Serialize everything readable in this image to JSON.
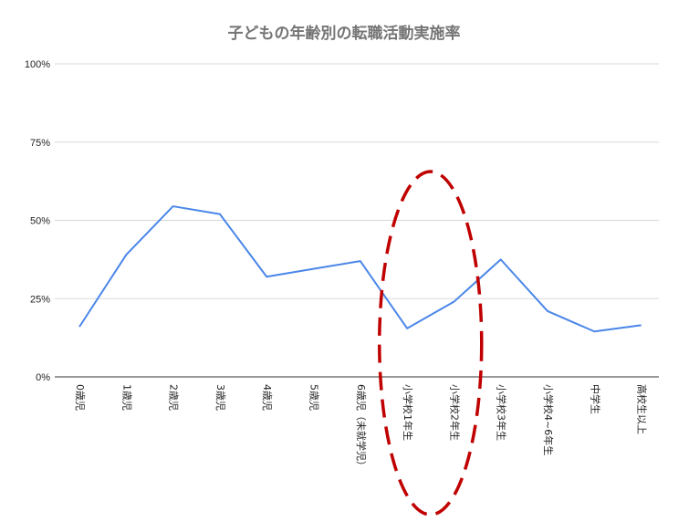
{
  "chart_data": {
    "type": "line",
    "title": "子どもの年齢別の転職活動実施率",
    "categories": [
      "0歳児",
      "1歳児",
      "2歳児",
      "3歳児",
      "4歳児",
      "5歳児",
      "6歳児（未就学児）",
      "小学校1年生",
      "小学校2年生",
      "小学校3年生",
      "小学校4~6年生",
      "中学生",
      "高校生以上"
    ],
    "series": [
      {
        "values": [
          0.16,
          0.39,
          0.545,
          0.52,
          0.32,
          0.345,
          0.37,
          0.155,
          0.24,
          0.375,
          0.21,
          0.145,
          0.165
        ]
      }
    ],
    "ylim": [
      0,
      1
    ],
    "yticks": [
      "0%",
      "25%",
      "50%",
      "75%",
      "100%"
    ],
    "grid": true,
    "legend": "none",
    "line_color": "#4a86e8",
    "annotation": {
      "shape": "dashed-ellipse",
      "color": "#c00000",
      "highlights": [
        "小学校1年生",
        "小学校2年生"
      ]
    }
  }
}
